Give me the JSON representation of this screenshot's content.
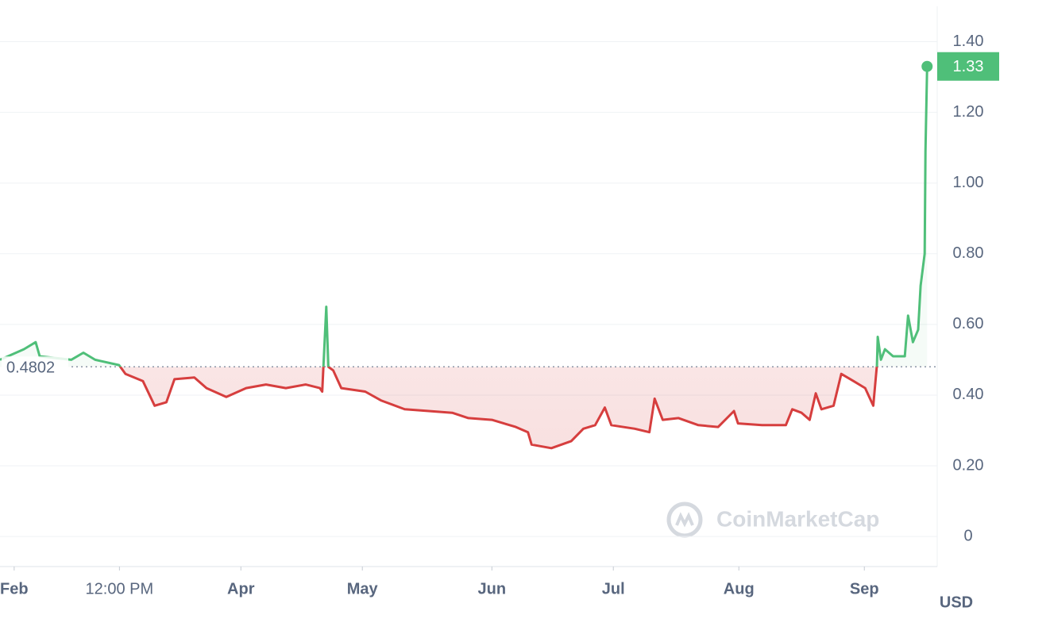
{
  "chart_data": {
    "type": "line",
    "x": [
      -3.5,
      2.4,
      5.3,
      6.3,
      14.1,
      17.1,
      20,
      25.9,
      27.5,
      31.8,
      34.7,
      37.6,
      39.6,
      44.5,
      47.5,
      52.4,
      57.3,
      62.2,
      67.1,
      72,
      75.5,
      76.1,
      77.1,
      77.6,
      78.8,
      80.8,
      86.7,
      90.6,
      96.5,
      102.4,
      108.2,
      112.2,
      118,
      123.9,
      126.9,
      127.8,
      132.7,
      137.6,
      140.6,
      143.5,
      145.9,
      147.5,
      153.3,
      156.9,
      158.2,
      160.2,
      164.1,
      169,
      173.9,
      177.8,
      178.8,
      184.7,
      190.6,
      192.2,
      194.5,
      196.5,
      198,
      199.4,
      202.4,
      204.3,
      207.3,
      210.2,
      212.2,
      213.1,
      213.3,
      214.1,
      215.1,
      217.1,
      220,
      220.8,
      222,
      223.3,
      223.9,
      224.9,
      225.1,
      225.5
    ],
    "values": [
      0.5,
      0.53,
      0.55,
      0.51,
      0.5,
      0.52,
      0.5,
      0.485,
      0.46,
      0.44,
      0.37,
      0.38,
      0.445,
      0.45,
      0.42,
      0.395,
      0.42,
      0.43,
      0.42,
      0.43,
      0.42,
      0.41,
      0.65,
      0.48,
      0.47,
      0.42,
      0.41,
      0.385,
      0.36,
      0.355,
      0.35,
      0.335,
      0.33,
      0.31,
      0.295,
      0.26,
      0.25,
      0.27,
      0.305,
      0.315,
      0.365,
      0.315,
      0.305,
      0.295,
      0.39,
      0.33,
      0.335,
      0.315,
      0.31,
      0.355,
      0.32,
      0.315,
      0.315,
      0.36,
      0.35,
      0.33,
      0.405,
      0.36,
      0.37,
      0.46,
      0.44,
      0.42,
      0.37,
      0.485,
      0.565,
      0.5,
      0.53,
      0.51,
      0.51,
      0.625,
      0.55,
      0.585,
      0.71,
      0.8,
      1.09,
      1.33
    ],
    "baseline": 0.4802,
    "up_color": "#4fbf79",
    "down_color": "#d63e3e",
    "xlim": [
      -3.5,
      228
    ],
    "xticks": [
      {
        "value": 0,
        "label": "Feb"
      },
      {
        "value": 26,
        "label": "12:00 PM"
      },
      {
        "value": 56,
        "label": "Apr"
      },
      {
        "value": 86,
        "label": "May"
      },
      {
        "value": 118,
        "label": "Jun"
      },
      {
        "value": 148,
        "label": "Jul"
      },
      {
        "value": 179,
        "label": "Aug"
      },
      {
        "value": 210,
        "label": "Sep"
      }
    ],
    "ylim": [
      -0.085,
      1.5
    ],
    "yticks": [
      0,
      {
        "value": 0.2,
        "label": "0.20"
      },
      {
        "value": 0.4,
        "label": "0.40"
      },
      {
        "value": 0.6,
        "label": "0.60"
      },
      {
        "value": 0.8,
        "label": "0.80"
      },
      {
        "value": 1.0,
        "label": "1.00"
      },
      {
        "value": 1.2,
        "label": "1.20"
      },
      {
        "value": 1.4,
        "label": "1.40"
      }
    ],
    "grid": true,
    "currency": "USD",
    "watermark": "CoinMarketCap"
  }
}
